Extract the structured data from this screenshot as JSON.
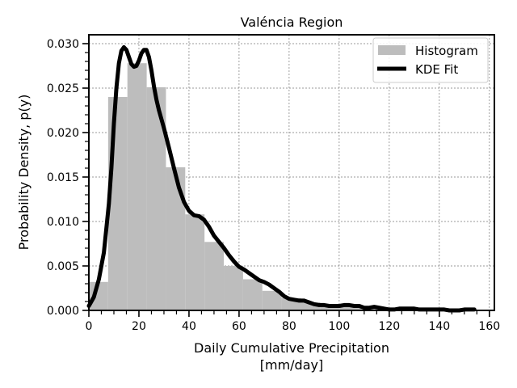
{
  "chart_data": {
    "type": "bar",
    "title": "Valéncia Region",
    "xlabel_line1": "Daily Cumulative Precipitation",
    "xlabel_line2": "[mm/day]",
    "ylabel": "Probability Density, p(y)",
    "xlim": [
      0,
      162
    ],
    "ylim": [
      0,
      0.031
    ],
    "xticks": [
      0,
      20,
      40,
      60,
      80,
      100,
      120,
      140,
      160
    ],
    "yticks": [
      0.0,
      0.005,
      0.01,
      0.015,
      0.02,
      0.025,
      0.03
    ],
    "grid": true,
    "legend": {
      "placement": "top-right",
      "histogram_label": "Histogram",
      "kde_label": "KDE Fit"
    },
    "histogram": {
      "color": "#bdbdbd",
      "bin_edges": [
        0,
        7.7,
        15.4,
        23.1,
        30.8,
        38.5,
        46.2,
        53.9,
        61.6,
        69.3,
        77.0,
        84.7,
        92.4,
        100.1,
        107.8,
        115.5,
        123.2,
        130.9,
        138.6,
        146.3,
        154.0
      ],
      "densities": [
        0.0032,
        0.024,
        0.0278,
        0.0251,
        0.0161,
        0.0108,
        0.0077,
        0.005,
        0.0035,
        0.0022,
        0.0014,
        0.0009,
        0.0006,
        0.0005,
        0.0004,
        0.0003,
        0.0002,
        0.0002,
        0.0001,
        0.0001
      ]
    },
    "kde": {
      "color": "#000000",
      "x": [
        0,
        2,
        4,
        6,
        8,
        9,
        10,
        11,
        12,
        13,
        14,
        15,
        16,
        17,
        18,
        19,
        20,
        21,
        22,
        23,
        24,
        25,
        26,
        27,
        28,
        30,
        32,
        34,
        36,
        38,
        40,
        42,
        44,
        46,
        48,
        50,
        52,
        54,
        56,
        58,
        60,
        62,
        64,
        66,
        68,
        70,
        72,
        74,
        76,
        78,
        80,
        82,
        84,
        86,
        88,
        90,
        92,
        94,
        96,
        98,
        100,
        102,
        104,
        106,
        108,
        110,
        112,
        114,
        116,
        118,
        120,
        122,
        124,
        126,
        128,
        130,
        132,
        134,
        136,
        138,
        140,
        142,
        144,
        146,
        148,
        150,
        152,
        154
      ],
      "y": [
        0.0005,
        0.0015,
        0.0035,
        0.0065,
        0.012,
        0.016,
        0.021,
        0.025,
        0.0278,
        0.0292,
        0.0296,
        0.0293,
        0.0285,
        0.0277,
        0.0274,
        0.0275,
        0.0281,
        0.0289,
        0.0293,
        0.0293,
        0.0285,
        0.027,
        0.0252,
        0.0237,
        0.0225,
        0.0205,
        0.0183,
        0.016,
        0.0138,
        0.0122,
        0.0112,
        0.0107,
        0.0106,
        0.0102,
        0.0094,
        0.0084,
        0.0077,
        0.007,
        0.0062,
        0.0055,
        0.0049,
        0.0046,
        0.0042,
        0.0038,
        0.0034,
        0.0032,
        0.0029,
        0.0025,
        0.0021,
        0.0016,
        0.0013,
        0.0012,
        0.0011,
        0.0011,
        0.0009,
        0.0007,
        0.0006,
        0.0006,
        0.0005,
        0.0005,
        0.0005,
        0.0006,
        0.0006,
        0.0005,
        0.0005,
        0.0003,
        0.0003,
        0.0004,
        0.0003,
        0.0002,
        0.0001,
        0.0001,
        0.0002,
        0.0002,
        0.0002,
        0.0002,
        0.0001,
        0.0001,
        0.0001,
        0.0001,
        0.0001,
        0.0001,
        0.0,
        0.0,
        0.0,
        0.0001,
        0.0001,
        0.0001
      ]
    }
  }
}
